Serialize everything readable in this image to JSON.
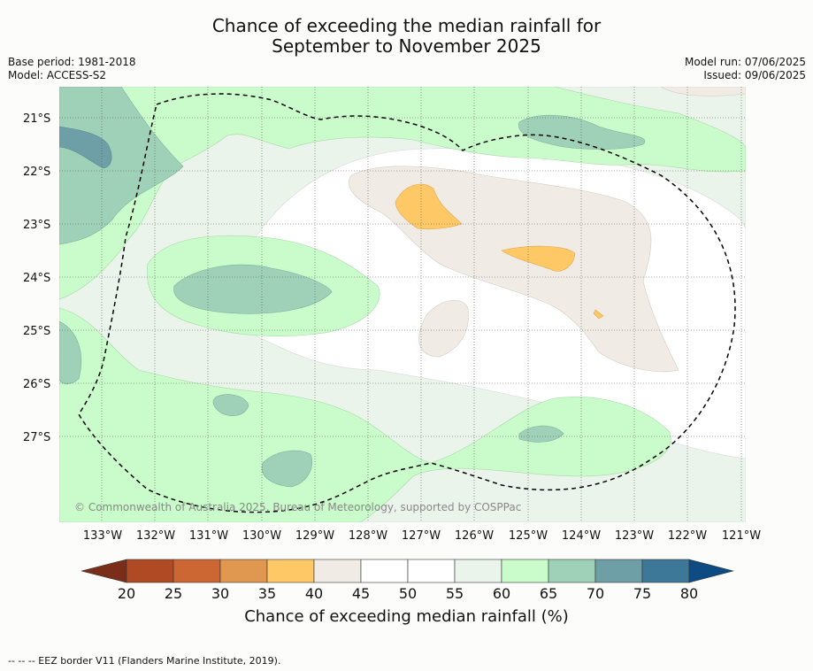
{
  "title_line1": "Chance of exceeding the median rainfall for",
  "title_line2": "September to November 2025",
  "meta_left": [
    "Base period: 1981-2018",
    "Model: ACCESS-S2"
  ],
  "meta_right": [
    "Model run: 07/06/2025",
    "Issued: 09/06/2025"
  ],
  "lat_labels": [
    "21°S",
    "22°S",
    "23°S",
    "24°S",
    "25°S",
    "26°S",
    "27°S"
  ],
  "lon_labels": [
    "133°W",
    "132°W",
    "131°W",
    "130°W",
    "129°W",
    "128°W",
    "127°W",
    "126°W",
    "125°W",
    "124°W",
    "123°W",
    "122°W",
    "121°W"
  ],
  "copyright": "© Commonwealth of Australia 2025, Bureau of Meteorology, supported by COSPPac",
  "colorbar": {
    "ticks": [
      "20",
      "25",
      "30",
      "35",
      "40",
      "45",
      "50",
      "55",
      "60",
      "65",
      "70",
      "75",
      "80"
    ],
    "colors": [
      "#7a2e1a",
      "#b04a24",
      "#cc6633",
      "#e09850",
      "#fdc865",
      "#f1ebe6",
      "#ffffff",
      "#ffffff",
      "#ebf4ea",
      "#c9fcca",
      "#9fd1b8",
      "#6e9fa6",
      "#3e7898",
      "#0e4b82"
    ],
    "label": "Chance of exceeding median rainfall (%)"
  },
  "footer": "--  --  -- EEZ border V11 (Flanders Marine Institute, 2019)."
}
